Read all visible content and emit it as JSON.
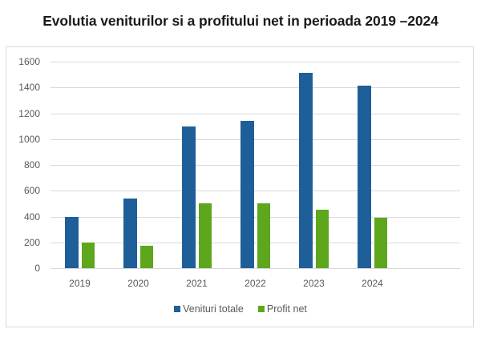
{
  "chart_data": {
    "type": "bar",
    "title": "Evolutia veniturilor si a profitului net in perioada 2019 –2024",
    "xlabel": "",
    "ylabel": "",
    "categories": [
      "2019",
      "2020",
      "2021",
      "2022",
      "2023",
      "2024"
    ],
    "series": [
      {
        "name": "Venituri totale",
        "color": "#1f5f99",
        "values": [
          400,
          540,
          1100,
          1140,
          1515,
          1415
        ]
      },
      {
        "name": "Profit net",
        "color": "#5ea61c",
        "values": [
          200,
          175,
          505,
          500,
          450,
          390
        ]
      }
    ],
    "ylim": [
      0,
      1600
    ],
    "yticks": [
      0,
      200,
      400,
      600,
      800,
      1000,
      1200,
      1400,
      1600
    ],
    "grid": true,
    "legend_position": "bottom"
  }
}
